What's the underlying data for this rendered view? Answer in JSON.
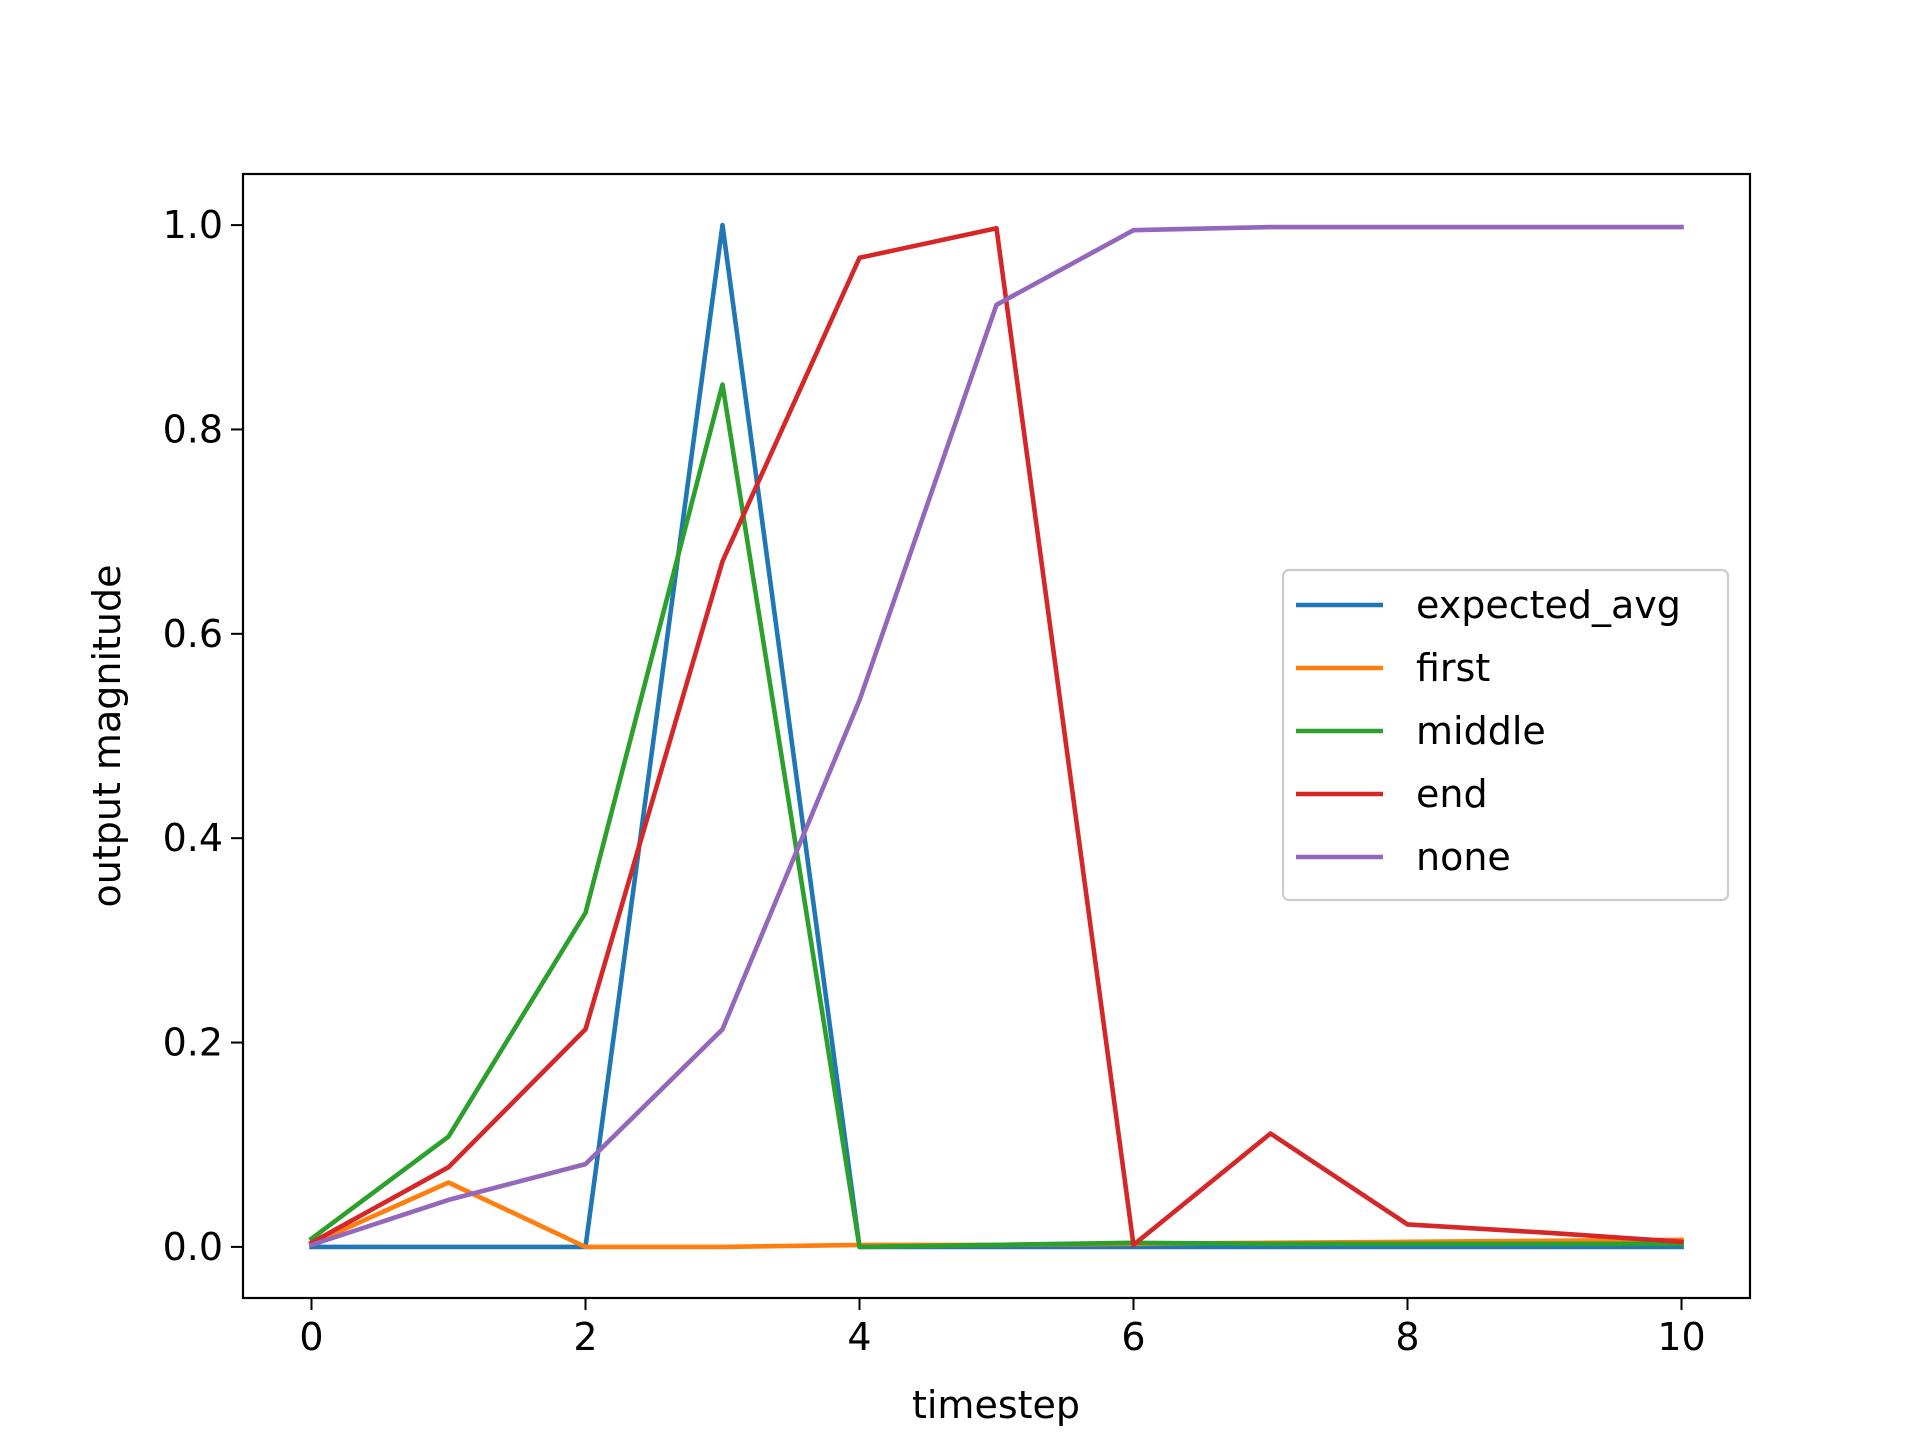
{
  "chart_data": {
    "type": "line",
    "title": "",
    "xlabel": "timestep",
    "ylabel": "output magnitude",
    "xlim": [
      -0.5,
      10.5
    ],
    "ylim": [
      -0.05,
      1.05
    ],
    "xticks": [
      0,
      2,
      4,
      6,
      8,
      10
    ],
    "xtick_labels": [
      "0",
      "2",
      "4",
      "6",
      "8",
      "10"
    ],
    "yticks": [
      0.0,
      0.2,
      0.4,
      0.6,
      0.8,
      1.0
    ],
    "ytick_labels": [
      "0.0",
      "0.2",
      "0.4",
      "0.6",
      "0.8",
      "1.0"
    ],
    "grid": false,
    "legend_position": "center-right",
    "x": [
      0,
      1,
      2,
      3,
      4,
      5,
      6,
      7,
      8,
      9,
      10
    ],
    "series": [
      {
        "name": "expected_avg",
        "color": "#1f77b4",
        "values": [
          0.0,
          0.0,
          0.0,
          1.0,
          0.0,
          0.0,
          0.0,
          0.0,
          0.0,
          0.0,
          0.0
        ]
      },
      {
        "name": "first",
        "color": "#ff7f0e",
        "values": [
          0.003,
          0.063,
          0.0,
          0.0,
          0.002,
          0.002,
          0.003,
          0.004,
          0.005,
          0.006,
          0.007
        ]
      },
      {
        "name": "middle",
        "color": "#2ca02c",
        "values": [
          0.008,
          0.108,
          0.327,
          0.844,
          0.0,
          0.002,
          0.004,
          0.003,
          0.003,
          0.003,
          0.003
        ]
      },
      {
        "name": "end",
        "color": "#d62728",
        "values": [
          0.004,
          0.078,
          0.213,
          0.671,
          0.968,
          0.997,
          0.002,
          0.111,
          0.022,
          0.014,
          0.005
        ]
      },
      {
        "name": "none",
        "color": "#9467bd",
        "values": [
          0.002,
          0.046,
          0.081,
          0.213,
          0.535,
          0.922,
          0.995,
          0.998,
          0.998,
          0.998,
          0.998
        ]
      }
    ]
  }
}
